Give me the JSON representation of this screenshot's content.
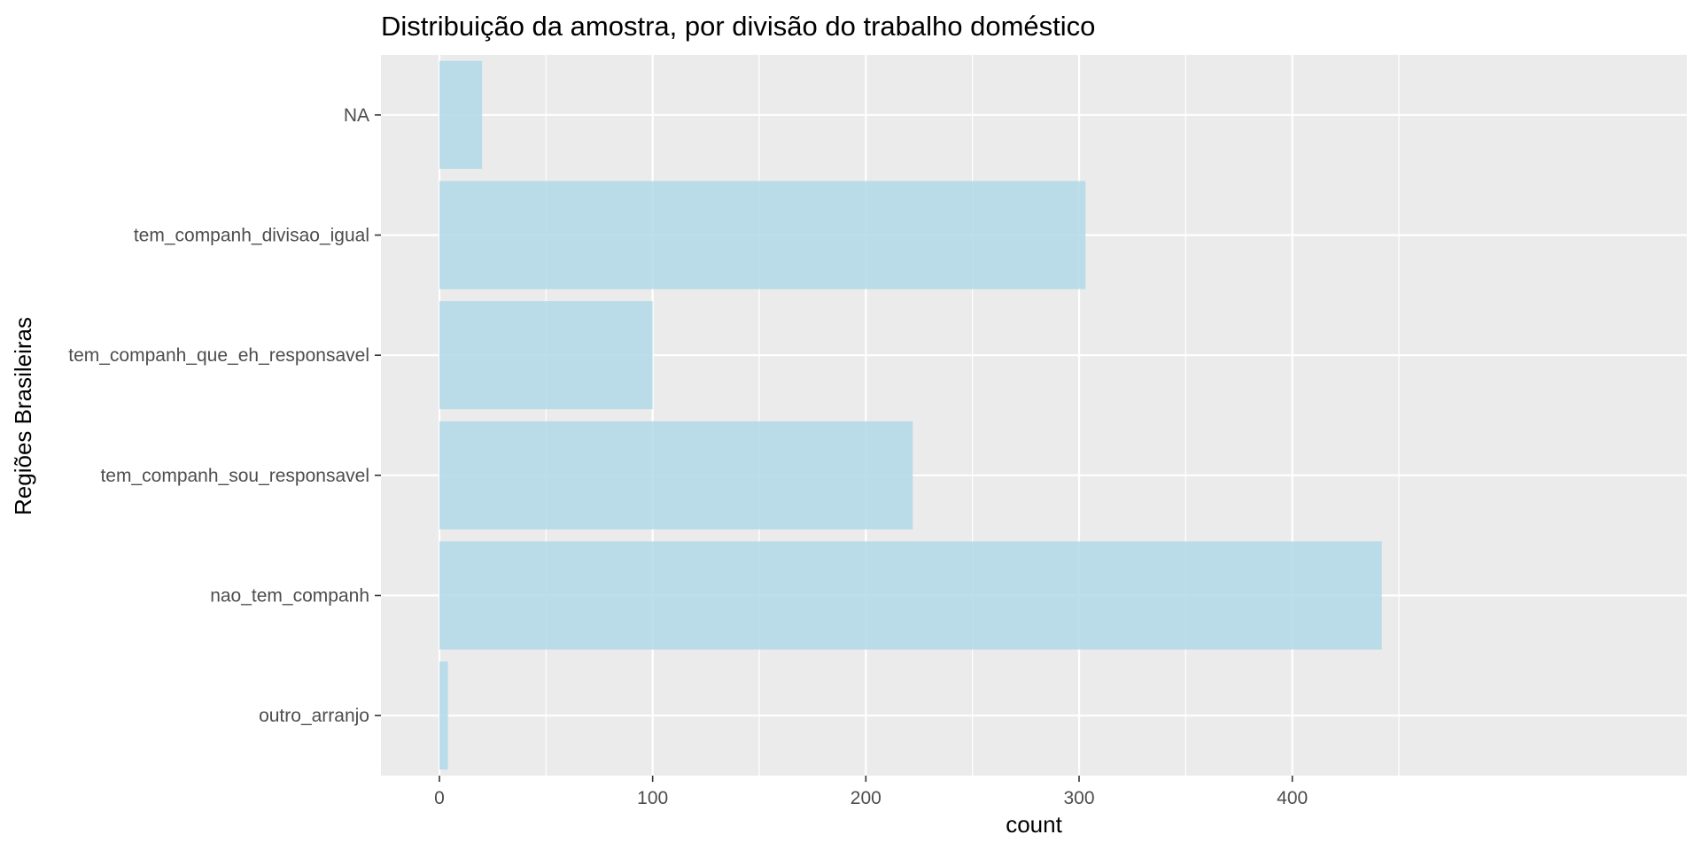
{
  "chart_data": {
    "type": "bar",
    "orientation": "horizontal",
    "title": "Distribuição da amostra, por divisão do trabalho doméstico",
    "xlabel": "count",
    "ylabel": "Regiões Brasileiras",
    "categories": [
      "NA",
      "tem_companh_divisao_igual",
      "tem_companh_que_eh_responsavel",
      "tem_companh_sou_responsavel",
      "nao_tem_companh",
      "outro_arranjo"
    ],
    "values": [
      20,
      303,
      100,
      222,
      442,
      4
    ],
    "xlim": [
      0,
      460
    ],
    "x_ticks": [
      0,
      100,
      200,
      300,
      400
    ],
    "x_tick_labels": [
      "0",
      "100",
      "200",
      "300",
      "400"
    ],
    "grid": true,
    "legend": "none",
    "colors": {
      "bar": "#add8e6",
      "panel_background": "#ebebeb",
      "gridline": "#ffffff",
      "tick_label": "#4d4d4d",
      "tick_mark": "#333333"
    }
  }
}
